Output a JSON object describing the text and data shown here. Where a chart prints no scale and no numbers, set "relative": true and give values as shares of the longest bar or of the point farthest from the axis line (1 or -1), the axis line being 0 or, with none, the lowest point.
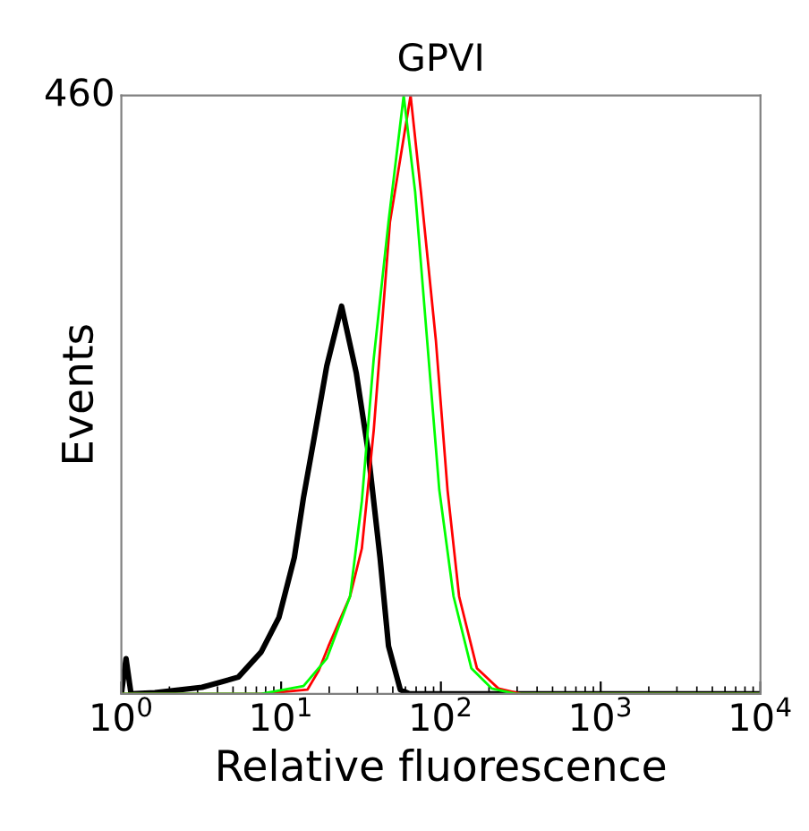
{
  "chart_data": {
    "type": "line",
    "title": "GPVI",
    "xlabel": "Relative fluorescence",
    "ylabel": "Events",
    "annotations": [
      "460"
    ],
    "relative": true,
    "log": "x",
    "xlim": [
      1,
      10000
    ],
    "xticks": [
      {
        "value": 1,
        "label": "10$^{0}$"
      },
      {
        "value": 10,
        "label": "10$^{1}$"
      },
      {
        "value": 100,
        "label": "10$^{2}$"
      },
      {
        "value": 1000,
        "label": "10$^{3}$"
      },
      {
        "value": 10000,
        "label": "10$^{4}$"
      }
    ],
    "grid": false,
    "legend": false,
    "marker": "none",
    "line_style": "solid",
    "series": [
      {
        "color": "#000000",
        "x": [
          1.0,
          1.07,
          1.15,
          1.62,
          3.2,
          5.4,
          7.5,
          9.7,
          12.1,
          13.8,
          16.1,
          19.3,
          23.9,
          29.5,
          34.9,
          41.6,
          47.0,
          55.7,
          63.5,
          10000
        ],
        "values": [
          0,
          0.059,
          0,
          0.002,
          0.011,
          0.028,
          0.07,
          0.128,
          0.228,
          0.328,
          0.428,
          0.548,
          0.648,
          0.537,
          0.409,
          0.228,
          0.08,
          0.007,
          0,
          0
        ]
      },
      {
        "color": "#ff0000",
        "x": [
          1,
          7.5,
          14.6,
          17.2,
          19.8,
          27,
          32,
          38,
          48,
          64.6,
          75,
          93,
          110,
          130,
          168,
          229,
          318,
          10000
        ],
        "values": [
          0,
          0,
          0.007,
          0.039,
          0.08,
          0.163,
          0.243,
          0.441,
          0.789,
          1,
          0.839,
          0.591,
          0.341,
          0.163,
          0.043,
          0.009,
          0,
          0
        ]
      },
      {
        "color": "#00ff00",
        "x": [
          1,
          7.5,
          13.8,
          19.3,
          27,
          32,
          38,
          47,
          58.5,
          69,
          82,
          97.7,
          120,
          155,
          208,
          294,
          10000
        ],
        "values": [
          0,
          0,
          0.013,
          0.059,
          0.163,
          0.322,
          0.561,
          0.789,
          1,
          0.839,
          0.591,
          0.341,
          0.163,
          0.043,
          0.009,
          0,
          0
        ]
      }
    ]
  }
}
